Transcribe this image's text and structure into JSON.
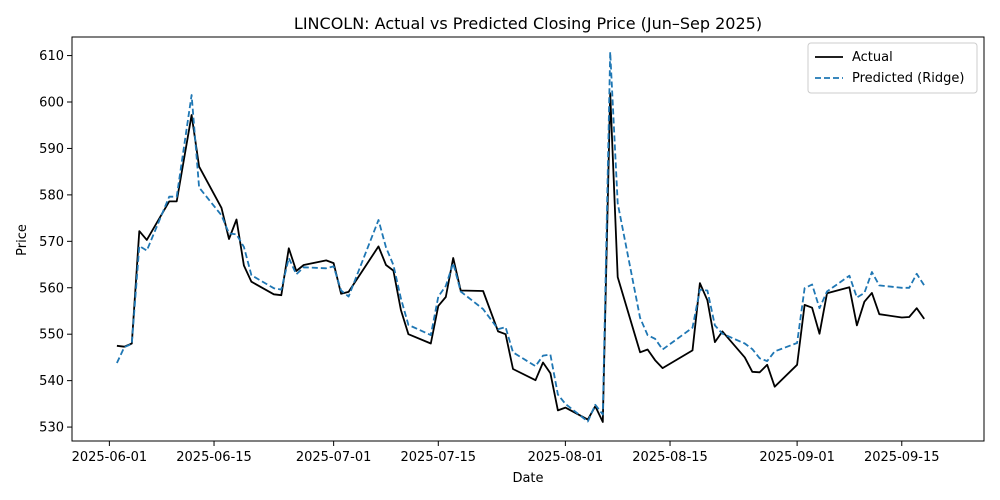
{
  "chart_data": {
    "type": "line",
    "title": "LINCOLN: Actual vs Predicted Closing Price (Jun–Sep 2025)",
    "xlabel": "Date",
    "ylabel": "Price",
    "xlim": [
      "2025-05-27",
      "2025-09-26"
    ],
    "ylim": [
      527,
      614
    ],
    "x_ticks": [
      "2025-06-01",
      "2025-06-15",
      "2025-07-01",
      "2025-07-15",
      "2025-08-01",
      "2025-08-15",
      "2025-09-01",
      "2025-09-15"
    ],
    "y_ticks": [
      530,
      540,
      550,
      560,
      570,
      580,
      590,
      600,
      610
    ],
    "grid": false,
    "legend_position": "top-right",
    "series": [
      {
        "name": "Actual",
        "color": "#000000",
        "style": "solid",
        "points": [
          [
            "2025-06-02",
            547.5
          ],
          [
            "2025-06-03",
            547.3
          ],
          [
            "2025-06-04",
            548.0
          ],
          [
            "2025-06-05",
            572.2
          ],
          [
            "2025-06-06",
            570.3
          ],
          [
            "2025-06-09",
            578.6
          ],
          [
            "2025-06-10",
            578.6
          ],
          [
            "2025-06-12",
            597.2
          ],
          [
            "2025-06-13",
            586.1
          ],
          [
            "2025-06-16",
            577.2
          ],
          [
            "2025-06-17",
            570.5
          ],
          [
            "2025-06-18",
            574.7
          ],
          [
            "2025-06-19",
            564.8
          ],
          [
            "2025-06-20",
            561.3
          ],
          [
            "2025-06-23",
            558.6
          ],
          [
            "2025-06-24",
            558.4
          ],
          [
            "2025-06-25",
            568.5
          ],
          [
            "2025-06-26",
            563.6
          ],
          [
            "2025-06-27",
            564.9
          ],
          [
            "2025-06-30",
            565.9
          ],
          [
            "2025-07-01",
            565.3
          ],
          [
            "2025-07-02",
            558.7
          ],
          [
            "2025-07-03",
            559.1
          ],
          [
            "2025-07-07",
            568.9
          ],
          [
            "2025-07-08",
            564.9
          ],
          [
            "2025-07-09",
            563.7
          ],
          [
            "2025-07-10",
            555.2
          ],
          [
            "2025-07-11",
            550.0
          ],
          [
            "2025-07-14",
            548.0
          ],
          [
            "2025-07-15",
            556.1
          ],
          [
            "2025-07-16",
            558.0
          ],
          [
            "2025-07-17",
            566.4
          ],
          [
            "2025-07-18",
            559.4
          ],
          [
            "2025-07-21",
            559.3
          ],
          [
            "2025-07-23",
            550.6
          ],
          [
            "2025-07-24",
            550.0
          ],
          [
            "2025-07-25",
            542.5
          ],
          [
            "2025-07-28",
            540.1
          ],
          [
            "2025-07-29",
            543.9
          ],
          [
            "2025-07-30",
            541.6
          ],
          [
            "2025-07-31",
            533.6
          ],
          [
            "2025-08-01",
            534.2
          ],
          [
            "2025-08-04",
            531.6
          ],
          [
            "2025-08-05",
            534.5
          ],
          [
            "2025-08-06",
            531.1
          ],
          [
            "2025-08-07",
            601.9
          ],
          [
            "2025-08-08",
            562.3
          ],
          [
            "2025-08-11",
            546.1
          ],
          [
            "2025-08-12",
            546.7
          ],
          [
            "2025-08-13",
            544.4
          ],
          [
            "2025-08-14",
            542.7
          ],
          [
            "2025-08-18",
            546.5
          ],
          [
            "2025-08-19",
            561.0
          ],
          [
            "2025-08-20",
            557.3
          ],
          [
            "2025-08-21",
            548.3
          ],
          [
            "2025-08-22",
            550.6
          ],
          [
            "2025-08-25",
            545.0
          ],
          [
            "2025-08-26",
            541.9
          ],
          [
            "2025-08-27",
            541.8
          ],
          [
            "2025-08-28",
            543.4
          ],
          [
            "2025-08-29",
            538.7
          ],
          [
            "2025-09-01",
            543.4
          ],
          [
            "2025-09-02",
            556.3
          ],
          [
            "2025-09-03",
            555.7
          ],
          [
            "2025-09-04",
            550.1
          ],
          [
            "2025-09-05",
            558.8
          ],
          [
            "2025-09-08",
            560.1
          ],
          [
            "2025-09-09",
            551.9
          ],
          [
            "2025-09-10",
            557.0
          ],
          [
            "2025-09-11",
            558.9
          ],
          [
            "2025-09-12",
            554.3
          ],
          [
            "2025-09-15",
            553.6
          ],
          [
            "2025-09-16",
            553.7
          ],
          [
            "2025-09-17",
            555.6
          ],
          [
            "2025-09-18",
            553.3
          ]
        ]
      },
      {
        "name": "Predicted (Ridge)",
        "color": "#1f77b4",
        "style": "dashed",
        "points": [
          [
            "2025-06-02",
            543.8
          ],
          [
            "2025-06-03",
            547.2
          ],
          [
            "2025-06-04",
            547.9
          ],
          [
            "2025-06-05",
            569.0
          ],
          [
            "2025-06-06",
            568.0
          ],
          [
            "2025-06-09",
            579.6
          ],
          [
            "2025-06-10",
            579.6
          ],
          [
            "2025-06-12",
            601.5
          ],
          [
            "2025-06-13",
            581.6
          ],
          [
            "2025-06-16",
            575.6
          ],
          [
            "2025-06-17",
            571.7
          ],
          [
            "2025-06-18",
            571.5
          ],
          [
            "2025-06-19",
            568.8
          ],
          [
            "2025-06-20",
            562.7
          ],
          [
            "2025-06-23",
            559.9
          ],
          [
            "2025-06-24",
            559.6
          ],
          [
            "2025-06-25",
            566.4
          ],
          [
            "2025-06-26",
            562.9
          ],
          [
            "2025-06-27",
            564.4
          ],
          [
            "2025-06-30",
            564.2
          ],
          [
            "2025-07-01",
            564.6
          ],
          [
            "2025-07-02",
            559.4
          ],
          [
            "2025-07-03",
            558.1
          ],
          [
            "2025-07-07",
            574.6
          ],
          [
            "2025-07-08",
            568.7
          ],
          [
            "2025-07-09",
            564.9
          ],
          [
            "2025-07-10",
            557.7
          ],
          [
            "2025-07-11",
            552.0
          ],
          [
            "2025-07-14",
            549.8
          ],
          [
            "2025-07-15",
            558.1
          ],
          [
            "2025-07-16",
            560.4
          ],
          [
            "2025-07-17",
            565.3
          ],
          [
            "2025-07-18",
            559.2
          ],
          [
            "2025-07-21",
            555.4
          ],
          [
            "2025-07-23",
            551.1
          ],
          [
            "2025-07-24",
            551.5
          ],
          [
            "2025-07-25",
            546.1
          ],
          [
            "2025-07-28",
            543.1
          ],
          [
            "2025-07-29",
            545.4
          ],
          [
            "2025-07-30",
            545.6
          ],
          [
            "2025-07-31",
            537.0
          ],
          [
            "2025-08-01",
            535.0
          ],
          [
            "2025-08-04",
            531.2
          ],
          [
            "2025-08-05",
            534.8
          ],
          [
            "2025-08-06",
            532.7
          ],
          [
            "2025-08-07",
            610.8
          ],
          [
            "2025-08-08",
            578.2
          ],
          [
            "2025-08-11",
            553.5
          ],
          [
            "2025-08-12",
            549.8
          ],
          [
            "2025-08-13",
            549.0
          ],
          [
            "2025-08-14",
            546.7
          ],
          [
            "2025-08-18",
            551.4
          ],
          [
            "2025-08-19",
            559.6
          ],
          [
            "2025-08-20",
            559.4
          ],
          [
            "2025-08-21",
            551.9
          ],
          [
            "2025-08-22",
            550.1
          ],
          [
            "2025-08-25",
            548.0
          ],
          [
            "2025-08-26",
            546.8
          ],
          [
            "2025-08-27",
            544.8
          ],
          [
            "2025-08-28",
            544.2
          ],
          [
            "2025-08-29",
            546.3
          ],
          [
            "2025-09-01",
            548.1
          ],
          [
            "2025-09-02",
            559.9
          ],
          [
            "2025-09-03",
            560.7
          ],
          [
            "2025-09-04",
            555.6
          ],
          [
            "2025-09-05",
            559.2
          ],
          [
            "2025-09-08",
            562.6
          ],
          [
            "2025-09-09",
            557.9
          ],
          [
            "2025-09-10",
            558.9
          ],
          [
            "2025-09-11",
            563.4
          ],
          [
            "2025-09-12",
            560.5
          ],
          [
            "2025-09-15",
            560.0
          ],
          [
            "2025-09-16",
            560.0
          ],
          [
            "2025-09-17",
            563.0
          ],
          [
            "2025-09-18",
            560.5
          ]
        ]
      }
    ]
  }
}
